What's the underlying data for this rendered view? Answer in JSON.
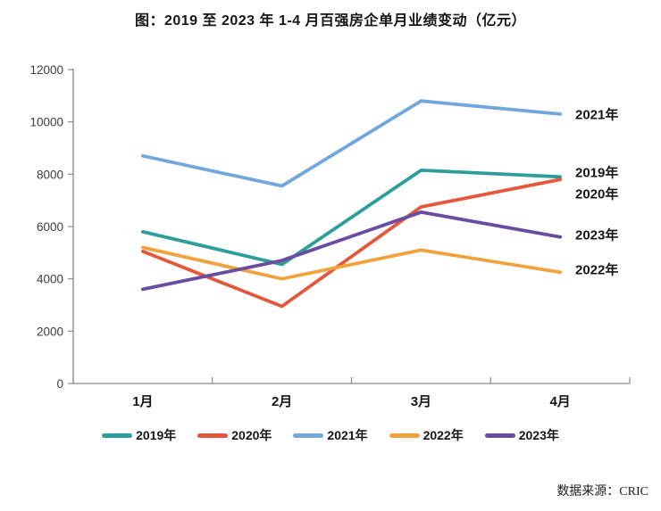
{
  "title": "图：2019 至 2023 年 1-4 月百强房企单月业绩变动（亿元）",
  "source": "数据来源：CRIC",
  "chart_data": {
    "type": "line",
    "categories": [
      "1月",
      "2月",
      "3月",
      "4月"
    ],
    "series": [
      {
        "name": "2019年",
        "color": "#2E9E9B",
        "values": [
          5800,
          4550,
          8150,
          7900
        ]
      },
      {
        "name": "2020年",
        "color": "#E4573D",
        "values": [
          5050,
          2950,
          6750,
          7800
        ]
      },
      {
        "name": "2021年",
        "color": "#72A7DB",
        "values": [
          8700,
          7550,
          10800,
          10300
        ]
      },
      {
        "name": "2022年",
        "color": "#F0A33C",
        "values": [
          5200,
          4000,
          5100,
          4250
        ]
      },
      {
        "name": "2023年",
        "color": "#6A4D9E",
        "values": [
          3600,
          4700,
          6550,
          5600
        ]
      }
    ],
    "title": "图：2019 至 2023 年 1-4 月百强房企单月业绩变动（亿元）",
    "xlabel": "",
    "ylabel": "",
    "ylim": [
      0,
      12000
    ],
    "yticks": [
      0,
      2000,
      4000,
      6000,
      8000,
      10000,
      12000
    ],
    "grid": false,
    "legend_position": "bottom",
    "end_labels": [
      {
        "text": "2021年",
        "value": 10300
      },
      {
        "text": "2019年",
        "value": 8080
      },
      {
        "text": "2020年",
        "value": 7260
      },
      {
        "text": "2023年",
        "value": 5690
      },
      {
        "text": "2022年",
        "value": 4360
      }
    ]
  }
}
